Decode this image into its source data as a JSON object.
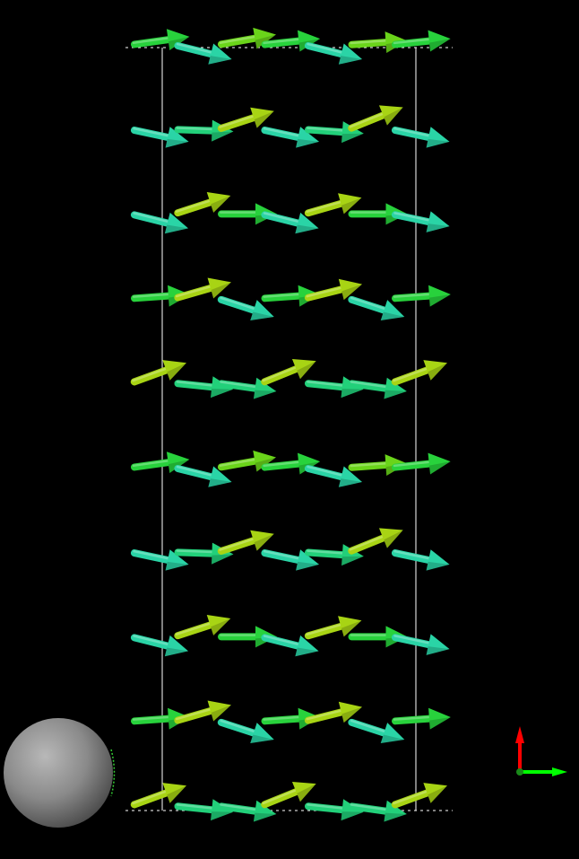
{
  "scene": {
    "background": "#000000",
    "cell_outline_color": "#ffffff",
    "cell_boundary_style": "dashed"
  },
  "spins": {
    "layers": 10,
    "sites_per_row": 7,
    "palette": [
      "#2ad4a6",
      "#22d07a",
      "#28d23c",
      "#6ad41a",
      "#a8d414"
    ],
    "rows": [
      [
        {
          "angle": -8,
          "color": 2
        },
        {
          "angle": 14,
          "color": 0
        },
        {
          "angle": -10,
          "color": 3
        },
        {
          "angle": -6,
          "color": 2
        },
        {
          "angle": 14,
          "color": 0
        },
        {
          "angle": -4,
          "color": 3
        },
        {
          "angle": -6,
          "color": 2
        }
      ],
      [
        {
          "angle": 12,
          "color": 0
        },
        {
          "angle": 2,
          "color": 1
        },
        {
          "angle": -18,
          "color": 4
        },
        {
          "angle": 12,
          "color": 0
        },
        {
          "angle": 4,
          "color": 1
        },
        {
          "angle": -22,
          "color": 4
        },
        {
          "angle": 12,
          "color": 0
        }
      ],
      [
        {
          "angle": 14,
          "color": 0
        },
        {
          "angle": -18,
          "color": 4
        },
        {
          "angle": 0,
          "color": 2
        },
        {
          "angle": 14,
          "color": 0
        },
        {
          "angle": -16,
          "color": 4
        },
        {
          "angle": 0,
          "color": 2
        },
        {
          "angle": 12,
          "color": 0
        }
      ],
      [
        {
          "angle": -4,
          "color": 2
        },
        {
          "angle": -16,
          "color": 4
        },
        {
          "angle": 18,
          "color": 0
        },
        {
          "angle": -4,
          "color": 2
        },
        {
          "angle": -14,
          "color": 4
        },
        {
          "angle": 18,
          "color": 0
        },
        {
          "angle": -4,
          "color": 2
        }
      ],
      [
        {
          "angle": -20,
          "color": 4
        },
        {
          "angle": 6,
          "color": 1
        },
        {
          "angle": 8,
          "color": 1
        },
        {
          "angle": -22,
          "color": 4
        },
        {
          "angle": 6,
          "color": 1
        },
        {
          "angle": 8,
          "color": 1
        },
        {
          "angle": -20,
          "color": 4
        }
      ],
      [
        {
          "angle": -8,
          "color": 2
        },
        {
          "angle": 14,
          "color": 0
        },
        {
          "angle": -10,
          "color": 3
        },
        {
          "angle": -6,
          "color": 2
        },
        {
          "angle": 14,
          "color": 0
        },
        {
          "angle": -4,
          "color": 3
        },
        {
          "angle": -6,
          "color": 2
        }
      ],
      [
        {
          "angle": 12,
          "color": 0
        },
        {
          "angle": 2,
          "color": 1
        },
        {
          "angle": -18,
          "color": 4
        },
        {
          "angle": 12,
          "color": 0
        },
        {
          "angle": 4,
          "color": 1
        },
        {
          "angle": -22,
          "color": 4
        },
        {
          "angle": 12,
          "color": 0
        }
      ],
      [
        {
          "angle": 14,
          "color": 0
        },
        {
          "angle": -18,
          "color": 4
        },
        {
          "angle": 0,
          "color": 2
        },
        {
          "angle": 14,
          "color": 0
        },
        {
          "angle": -16,
          "color": 4
        },
        {
          "angle": 0,
          "color": 2
        },
        {
          "angle": 12,
          "color": 0
        }
      ],
      [
        {
          "angle": -4,
          "color": 2
        },
        {
          "angle": -16,
          "color": 4
        },
        {
          "angle": 18,
          "color": 0
        },
        {
          "angle": -4,
          "color": 2
        },
        {
          "angle": -14,
          "color": 4
        },
        {
          "angle": 18,
          "color": 0
        },
        {
          "angle": -4,
          "color": 2
        }
      ],
      [
        {
          "angle": -20,
          "color": 4
        },
        {
          "angle": 6,
          "color": 1
        },
        {
          "angle": 8,
          "color": 1
        },
        {
          "angle": -22,
          "color": 4
        },
        {
          "angle": 6,
          "color": 1
        },
        {
          "angle": 8,
          "color": 1
        },
        {
          "angle": -20,
          "color": 4
        }
      ]
    ]
  },
  "orientation_sphere": {
    "color": "#8a8a8a",
    "marker_color": "#33cc33"
  },
  "axis_triad": {
    "vertical_color": "#ff0000",
    "horizontal_color": "#00ff00",
    "origin_color": "#1a8a1a"
  }
}
